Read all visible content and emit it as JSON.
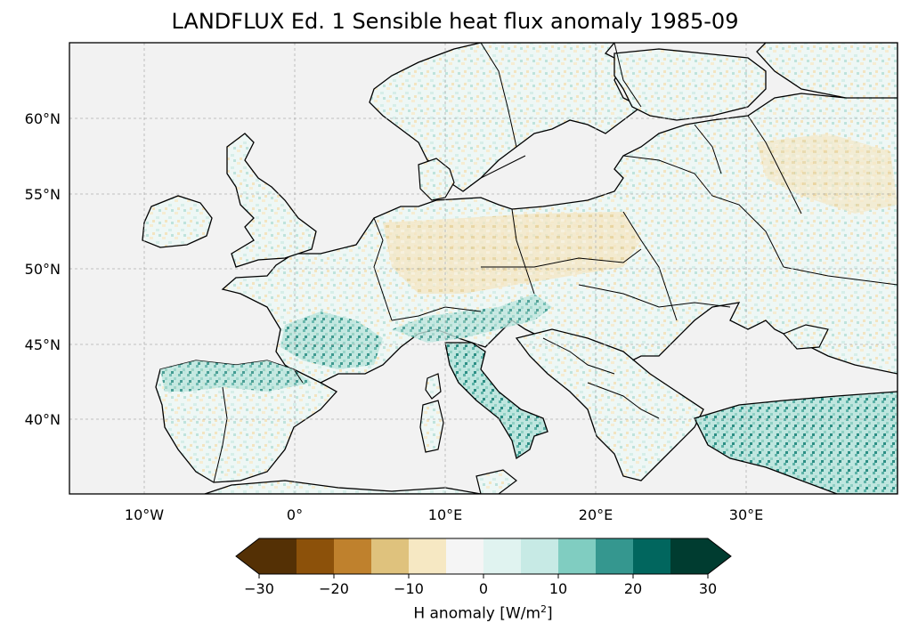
{
  "title": "LANDFLUX Ed. 1 Sensible heat flux anomaly 1985-09",
  "map": {
    "lon_ticks": [
      "10°W",
      "0°",
      "10°E",
      "20°E",
      "30°E"
    ],
    "lat_ticks": [
      "60°N",
      "55°N",
      "50°N",
      "45°N",
      "40°N"
    ],
    "ocean_color": "#f2f2f2",
    "coast_color": "#000000",
    "grid": true
  },
  "colorbar": {
    "label_prefix": "H anomaly [W/m",
    "label_sup": "2",
    "label_suffix": "]",
    "ticks": [
      "−30",
      "−20",
      "−10",
      "0",
      "10",
      "20",
      "30"
    ],
    "colors": [
      "#543005",
      "#8c510a",
      "#bf812d",
      "#dfc27d",
      "#f6e8c3",
      "#f5f5f5",
      "#c7eae5",
      "#80cdc1",
      "#35978f",
      "#01665e",
      "#003c30",
      "#01332a"
    ],
    "extend": "both"
  }
}
